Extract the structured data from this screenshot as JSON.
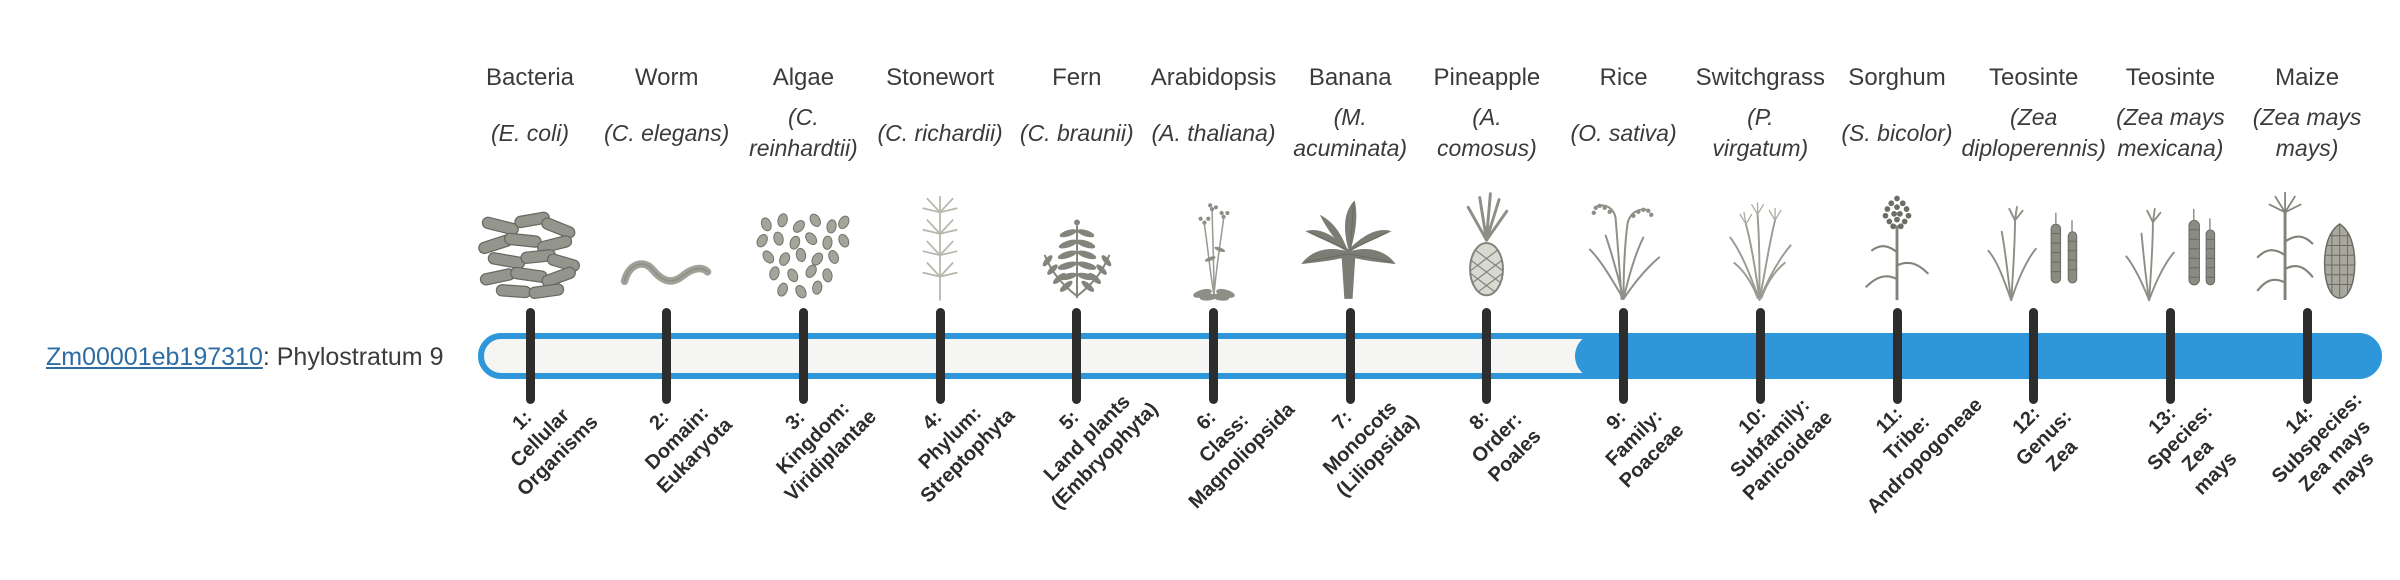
{
  "row": {
    "gene_id": "Zm00001eb197310",
    "suffix": ": Phylostratum 9"
  },
  "colors": {
    "accent_blue": "#2e96d9",
    "bar_track": "#f5f5f3",
    "tick": "#2d2d2d",
    "link": "#2e6da4",
    "text": "#3b3b3b"
  },
  "timeline": {
    "n_stages": 14,
    "filled_from_stage": 9,
    "highlighted_phylostratum": 9
  },
  "organisms": [
    {
      "stage": 1,
      "common_name": "Bacteria",
      "scientific_lines": [
        "(E. coli)"
      ],
      "icon": "bacteria-illustration",
      "stage_lines": [
        "1:",
        "Cellular",
        "Organisms"
      ]
    },
    {
      "stage": 2,
      "common_name": "Worm",
      "scientific_lines": [
        "(C. elegans)"
      ],
      "icon": "worm-illustration",
      "stage_lines": [
        "2:",
        "Domain:",
        "Eukaryota"
      ]
    },
    {
      "stage": 3,
      "common_name": "Algae",
      "scientific_lines": [
        "(C.",
        "reinhardtii)"
      ],
      "icon": "algae-illustration",
      "stage_lines": [
        "3:",
        "Kingdom:",
        "Viridiplantae"
      ]
    },
    {
      "stage": 4,
      "common_name": "Stonewort",
      "scientific_lines": [
        "(C. richardii)"
      ],
      "icon": "stonewort-illustration",
      "stage_lines": [
        "4:",
        "Phylum:",
        "Streptophyta"
      ]
    },
    {
      "stage": 5,
      "common_name": "Fern",
      "scientific_lines": [
        "(C. braunii)"
      ],
      "icon": "fern-illustration",
      "stage_lines": [
        "5:",
        "Land plants",
        "(Embryophyta)"
      ]
    },
    {
      "stage": 6,
      "common_name": "Arabidopsis",
      "scientific_lines": [
        "(A. thaliana)"
      ],
      "icon": "arabidopsis-illustration",
      "stage_lines": [
        "6:",
        "Class:",
        "Magnoliopsida"
      ]
    },
    {
      "stage": 7,
      "common_name": "Banana",
      "scientific_lines": [
        "(M.",
        "acuminata)"
      ],
      "icon": "banana-illustration",
      "stage_lines": [
        "7:",
        "Monocots",
        "(Liliopsida)"
      ]
    },
    {
      "stage": 8,
      "common_name": "Pineapple",
      "scientific_lines": [
        "(A.",
        "comosus)"
      ],
      "icon": "pineapple-illustration",
      "stage_lines": [
        "8:",
        "Order:",
        "Poales"
      ]
    },
    {
      "stage": 9,
      "common_name": "Rice",
      "scientific_lines": [
        "(O. sativa)"
      ],
      "icon": "rice-illustration",
      "stage_lines": [
        "9:",
        "Family:",
        "Poaceae"
      ]
    },
    {
      "stage": 10,
      "common_name": "Switchgrass",
      "scientific_lines": [
        "(P.",
        "virgatum)"
      ],
      "icon": "switchgrass-illustration",
      "stage_lines": [
        "10:",
        "Subfamily:",
        "Panicoideae"
      ]
    },
    {
      "stage": 11,
      "common_name": "Sorghum",
      "scientific_lines": [
        "(S. bicolor)"
      ],
      "icon": "sorghum-illustration",
      "stage_lines": [
        "11:",
        "Tribe:",
        "Andropogoneae"
      ]
    },
    {
      "stage": 12,
      "common_name": "Teosinte",
      "scientific_lines": [
        "(Zea",
        "diploperennis)"
      ],
      "icon": "teosinte-diploperennis-illustration",
      "stage_lines": [
        "12:",
        "Genus:",
        "Zea"
      ]
    },
    {
      "stage": 13,
      "common_name": "Teosinte",
      "scientific_lines": [
        "(Zea mays",
        "mexicana)"
      ],
      "icon": "teosinte-mexicana-illustration",
      "stage_lines": [
        "13:",
        "Species:",
        "Zea",
        "mays"
      ]
    },
    {
      "stage": 14,
      "common_name": "Maize",
      "scientific_lines": [
        "(Zea mays",
        "mays)"
      ],
      "icon": "maize-illustration",
      "stage_lines": [
        "14:",
        "Subspecies:",
        "Zea mays",
        "mays"
      ]
    }
  ]
}
